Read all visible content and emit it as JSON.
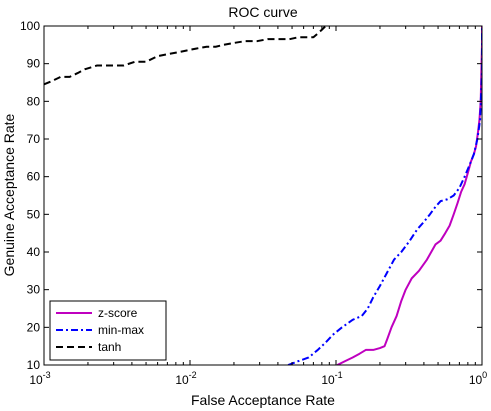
{
  "chart_data": {
    "type": "line",
    "title": "ROC curve",
    "xlabel": "False Acceptance Rate",
    "ylabel": "Genuine Acceptance Rate",
    "xscale": "log",
    "xlim": [
      0.001,
      1
    ],
    "ylim": [
      10,
      100
    ],
    "x_ticks": [
      {
        "value": 0.001,
        "base": "10",
        "exp": "-3"
      },
      {
        "value": 0.01,
        "base": "10",
        "exp": "-2"
      },
      {
        "value": 0.1,
        "base": "10",
        "exp": "-1"
      },
      {
        "value": 1,
        "base": "10",
        "exp": "0"
      }
    ],
    "y_ticks": [
      {
        "value": 10,
        "label": "10"
      },
      {
        "value": 20,
        "label": "20"
      },
      {
        "value": 30,
        "label": "30"
      },
      {
        "value": 40,
        "label": "40"
      },
      {
        "value": 50,
        "label": "50"
      },
      {
        "value": 60,
        "label": "60"
      },
      {
        "value": 70,
        "label": "70"
      },
      {
        "value": 80,
        "label": "80"
      },
      {
        "value": 90,
        "label": "90"
      },
      {
        "value": 100,
        "label": "100"
      }
    ],
    "grid": false,
    "legend_position": "bottom-left",
    "series": [
      {
        "name": "z-score",
        "color": "#bf00bf",
        "dash": "solid",
        "x": [
          0.102,
          0.115,
          0.13,
          0.145,
          0.16,
          0.18,
          0.2,
          0.215,
          0.225,
          0.24,
          0.26,
          0.28,
          0.3,
          0.33,
          0.37,
          0.42,
          0.48,
          0.52,
          0.56,
          0.6,
          0.64,
          0.68,
          0.72,
          0.76,
          0.8,
          0.84,
          0.88,
          0.91,
          0.94,
          0.96,
          0.98,
          0.99,
          1.0,
          1.0
        ],
        "y": [
          10,
          11,
          12,
          13,
          14,
          14,
          14.5,
          15,
          17,
          20,
          23,
          27,
          30,
          33,
          35,
          38,
          42,
          43,
          45,
          47,
          50,
          53,
          56,
          58,
          61,
          64,
          66,
          68,
          72,
          75,
          80,
          88,
          95,
          100
        ]
      },
      {
        "name": "min-max",
        "color": "#0000ff",
        "dash": "dashdot",
        "x": [
          0.047,
          0.055,
          0.065,
          0.075,
          0.085,
          0.095,
          0.11,
          0.13,
          0.15,
          0.165,
          0.18,
          0.2,
          0.22,
          0.25,
          0.28,
          0.32,
          0.36,
          0.4,
          0.44,
          0.48,
          0.52,
          0.58,
          0.64,
          0.7,
          0.76,
          0.82,
          0.88,
          0.93,
          0.97,
          1.0,
          1.0
        ],
        "y": [
          10,
          11,
          12,
          14,
          16,
          18,
          20,
          22,
          23,
          25,
          28,
          31,
          34,
          38,
          40,
          43,
          46,
          48,
          50,
          52,
          53.5,
          54,
          55,
          57,
          60,
          63,
          66,
          70,
          75,
          88,
          100
        ]
      },
      {
        "name": "tanh",
        "color": "#000000",
        "dash": "dashed",
        "x": [
          0.001,
          0.00115,
          0.0013,
          0.0015,
          0.0017,
          0.0019,
          0.0023,
          0.0028,
          0.0035,
          0.0042,
          0.005,
          0.006,
          0.007,
          0.0082,
          0.0095,
          0.011,
          0.013,
          0.015,
          0.017,
          0.02,
          0.024,
          0.029,
          0.034,
          0.04,
          0.048,
          0.055,
          0.062,
          0.07,
          0.075,
          0.08,
          0.085
        ],
        "y": [
          84.5,
          85.5,
          86.5,
          86.5,
          87.5,
          88.5,
          89.5,
          89.5,
          89.5,
          90.5,
          90.5,
          92,
          92.5,
          93,
          93.5,
          94,
          94.5,
          94.5,
          95,
          95.5,
          96,
          96,
          96.5,
          96.5,
          96.5,
          97,
          97,
          97,
          98,
          99,
          100
        ]
      }
    ]
  }
}
